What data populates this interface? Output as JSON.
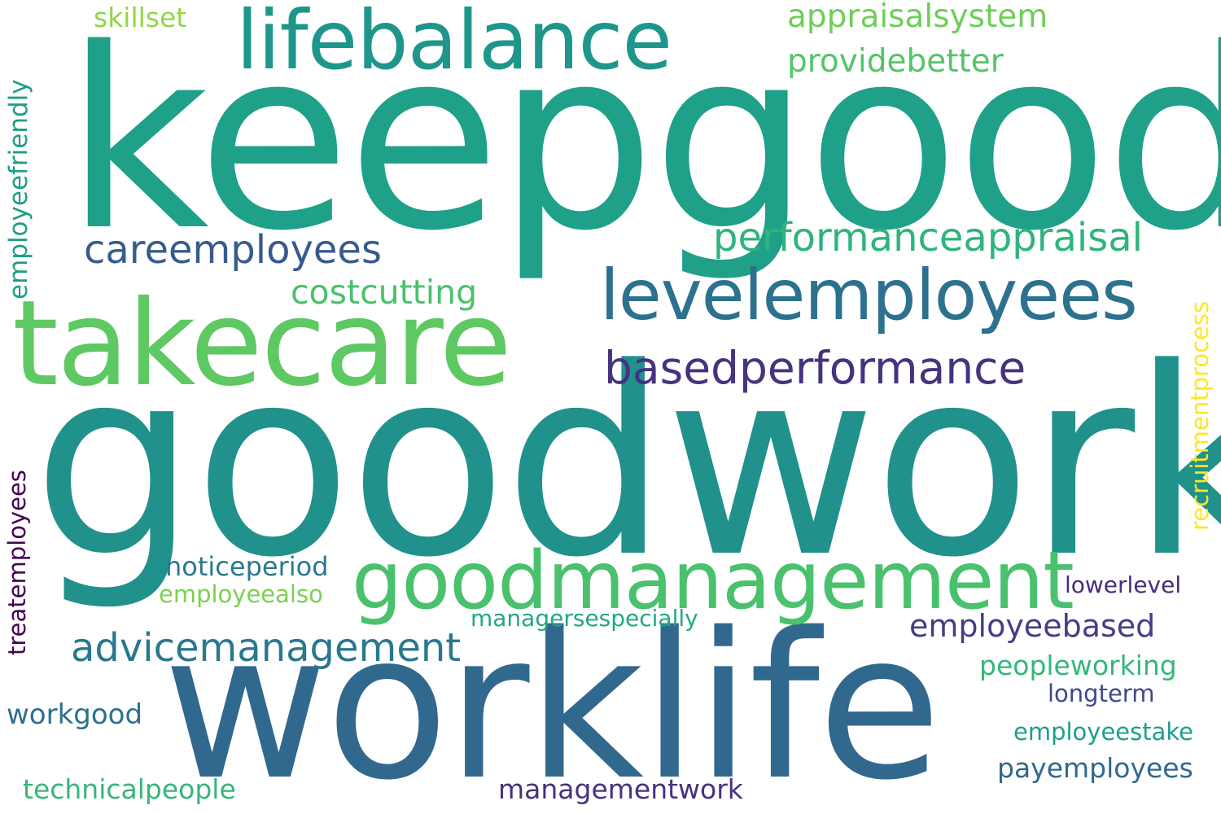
{
  "words": [
    {
      "key": "goodwork",
      "text": "goodwork",
      "color": "#21918c"
    },
    {
      "key": "keepgood",
      "text": "keepgood",
      "color": "#1fa088"
    },
    {
      "key": "worklife",
      "text": "worklife",
      "color": "#31688e"
    },
    {
      "key": "takecare",
      "text": "takecare",
      "color": "#5ec962"
    },
    {
      "key": "goodmanagement",
      "text": "goodmanagement",
      "color": "#4ac16d"
    },
    {
      "key": "lifebalance",
      "text": "lifebalance",
      "color": "#1f968b"
    },
    {
      "key": "levelemployees",
      "text": "levelemployees",
      "color": "#2c718e"
    },
    {
      "key": "basedperformance",
      "text": "basedperformance",
      "color": "#46327e"
    },
    {
      "key": "performanceappraisal",
      "text": "performanceappraisal",
      "color": "#2fb47c"
    },
    {
      "key": "careemployees",
      "text": "careemployees",
      "color": "#375b8d"
    },
    {
      "key": "advicemanagement",
      "text": "advicemanagement",
      "color": "#2a788e"
    },
    {
      "key": "appraisalsystem",
      "text": "appraisalsystem",
      "color": "#6ece58"
    },
    {
      "key": "providebetter",
      "text": "providebetter",
      "color": "#54c568"
    },
    {
      "key": "costcutting",
      "text": "costcutting",
      "color": "#4ac16d"
    },
    {
      "key": "employeebased",
      "text": "employeebased",
      "color": "#433e85"
    },
    {
      "key": "skillset",
      "text": "skillset",
      "color": "#90d743"
    },
    {
      "key": "employeefriendly",
      "text": "employeefriendly",
      "color": "#1f9e89"
    },
    {
      "key": "recruitmentprocess",
      "text": "recruitmentprocess",
      "color": "#fde725"
    },
    {
      "key": "treatemployees",
      "text": "treatemployees",
      "color": "#440154"
    },
    {
      "key": "noticeperiod",
      "text": "noticeperiod",
      "color": "#2a788e"
    },
    {
      "key": "employeealso",
      "text": "employeealso",
      "color": "#7ad151"
    },
    {
      "key": "managersespecially",
      "text": "managersespecially",
      "color": "#22a785"
    },
    {
      "key": "lowerlevel",
      "text": "lowerlevel",
      "color": "#472d7b"
    },
    {
      "key": "peopleworking",
      "text": "peopleworking",
      "color": "#35b779"
    },
    {
      "key": "longterm",
      "text": "longterm",
      "color": "#3e4989"
    },
    {
      "key": "workgood",
      "text": "workgood",
      "color": "#2c718e"
    },
    {
      "key": "employeestake",
      "text": "employeestake",
      "color": "#1f9e89"
    },
    {
      "key": "payemployees",
      "text": "payemployees",
      "color": "#31688e"
    },
    {
      "key": "technicalpeople",
      "text": "technicalpeople",
      "color": "#35b779"
    },
    {
      "key": "managementwork",
      "text": "managementwork",
      "color": "#46327e"
    }
  ]
}
